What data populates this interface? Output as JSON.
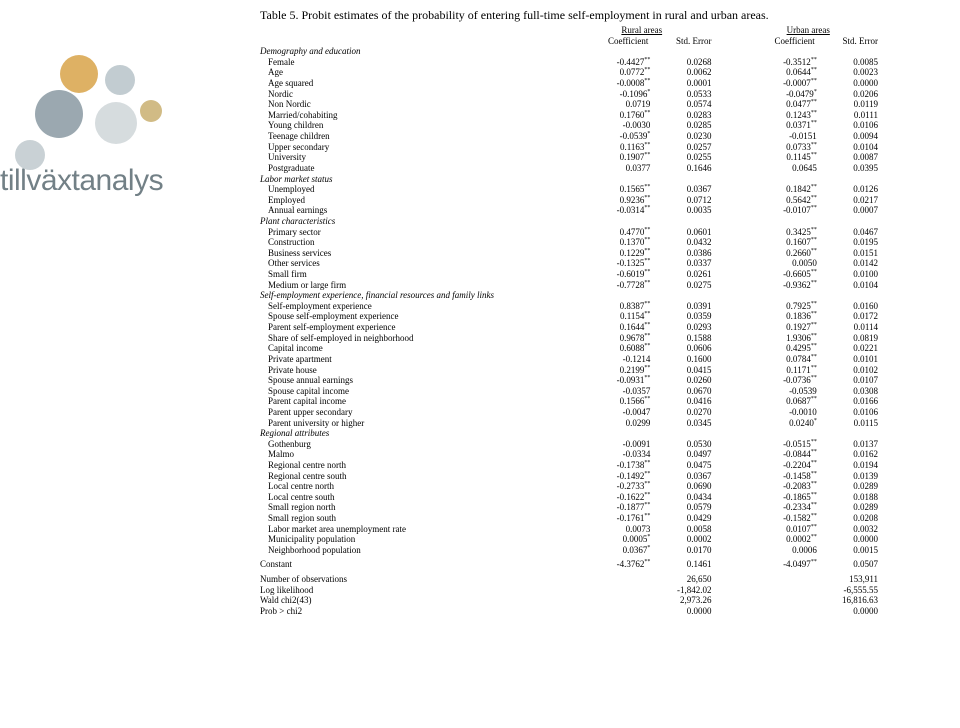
{
  "title": "Table 5. Probit estimates of the probability of entering full-time self-employment in rural and urban areas.",
  "header": {
    "group1": "Rural areas",
    "group2": "Urban areas",
    "coef": "Coefficient",
    "err": "Std. Error"
  },
  "sections": [
    {
      "name": "Demography and education",
      "rows": [
        {
          "l": "Female",
          "c1": "-0.4427",
          "s1": "**",
          "e1": "0.0268",
          "c2": "-0.3512",
          "s2": "**",
          "e2": "0.0085"
        },
        {
          "l": "Age",
          "c1": "0.0772",
          "s1": "**",
          "e1": "0.0062",
          "c2": "0.0644",
          "s2": "**",
          "e2": "0.0023"
        },
        {
          "l": "Age squared",
          "c1": "-0.0008",
          "s1": "**",
          "e1": "0.0001",
          "c2": "-0.0007",
          "s2": "**",
          "e2": "0.0000"
        },
        {
          "l": "Nordic",
          "c1": "-0.1096",
          "s1": "*",
          "e1": "0.0533",
          "c2": "-0.0479",
          "s2": "*",
          "e2": "0.0206"
        },
        {
          "l": "Non Nordic",
          "c1": "0.0719",
          "s1": "",
          "e1": "0.0574",
          "c2": "0.0477",
          "s2": "**",
          "e2": "0.0119"
        },
        {
          "l": "Married/cohabiting",
          "c1": "0.1760",
          "s1": "**",
          "e1": "0.0283",
          "c2": "0.1243",
          "s2": "**",
          "e2": "0.0111"
        },
        {
          "l": "Young children",
          "c1": "-0.0030",
          "s1": "",
          "e1": "0.0285",
          "c2": "0.0371",
          "s2": "**",
          "e2": "0.0106"
        },
        {
          "l": "Teenage children",
          "c1": "-0.0539",
          "s1": "*",
          "e1": "0.0230",
          "c2": "-0.0151",
          "s2": "",
          "e2": "0.0094"
        },
        {
          "l": "Upper secondary",
          "c1": "0.1163",
          "s1": "**",
          "e1": "0.0257",
          "c2": "0.0733",
          "s2": "**",
          "e2": "0.0104"
        },
        {
          "l": "University",
          "c1": "0.1907",
          "s1": "**",
          "e1": "0.0255",
          "c2": "0.1145",
          "s2": "**",
          "e2": "0.0087"
        },
        {
          "l": "Postgraduate",
          "c1": "0.0377",
          "s1": "",
          "e1": "0.1646",
          "c2": "0.0645",
          "s2": "",
          "e2": "0.0395"
        }
      ]
    },
    {
      "name": "Labor market status",
      "rows": [
        {
          "l": "Unemployed",
          "c1": "0.1565",
          "s1": "**",
          "e1": "0.0367",
          "c2": "0.1842",
          "s2": "**",
          "e2": "0.0126"
        },
        {
          "l": "Employed",
          "c1": "0.9236",
          "s1": "**",
          "e1": "0.0712",
          "c2": "0.5642",
          "s2": "**",
          "e2": "0.0217"
        },
        {
          "l": "Annual earnings",
          "c1": "-0.0314",
          "s1": "**",
          "e1": "0.0035",
          "c2": "-0.0107",
          "s2": "**",
          "e2": "0.0007"
        }
      ]
    },
    {
      "name": "Plant characteristics",
      "rows": [
        {
          "l": "Primary sector",
          "c1": "0.4770",
          "s1": "**",
          "e1": "0.0601",
          "c2": "0.3425",
          "s2": "**",
          "e2": "0.0467"
        },
        {
          "l": "Construction",
          "c1": "0.1370",
          "s1": "**",
          "e1": "0.0432",
          "c2": "0.1607",
          "s2": "**",
          "e2": "0.0195"
        },
        {
          "l": "Business services",
          "c1": "0.1229",
          "s1": "**",
          "e1": "0.0386",
          "c2": "0.2660",
          "s2": "**",
          "e2": "0.0151"
        },
        {
          "l": "Other services",
          "c1": "-0.1325",
          "s1": "**",
          "e1": "0.0337",
          "c2": "0.0050",
          "s2": "",
          "e2": "0.0142"
        },
        {
          "l": "Small firm",
          "c1": "-0.6019",
          "s1": "**",
          "e1": "0.0261",
          "c2": "-0.6605",
          "s2": "**",
          "e2": "0.0100"
        },
        {
          "l": "Medium or large firm",
          "c1": "-0.7728",
          "s1": "**",
          "e1": "0.0275",
          "c2": "-0.9362",
          "s2": "**",
          "e2": "0.0104"
        }
      ]
    },
    {
      "name": "Self-employment experience, financial resources and family links",
      "rows": [
        {
          "l": "Self-employment experience",
          "c1": "0.8387",
          "s1": "**",
          "e1": "0.0391",
          "c2": "0.7925",
          "s2": "**",
          "e2": "0.0160"
        },
        {
          "l": "Spouse self-employment experience",
          "c1": "0.1154",
          "s1": "**",
          "e1": "0.0359",
          "c2": "0.1836",
          "s2": "**",
          "e2": "0.0172"
        },
        {
          "l": "Parent self-employment experience",
          "c1": "0.1644",
          "s1": "**",
          "e1": "0.0293",
          "c2": "0.1927",
          "s2": "**",
          "e2": "0.0114"
        },
        {
          "l": "Share of self-employed in neighborhood",
          "c1": "0.9678",
          "s1": "**",
          "e1": "0.1588",
          "c2": "1.9306",
          "s2": "**",
          "e2": "0.0819"
        },
        {
          "l": "Capital income",
          "c1": "0.6088",
          "s1": "**",
          "e1": "0.0606",
          "c2": "0.4295",
          "s2": "**",
          "e2": "0.0221"
        },
        {
          "l": "Private apartment",
          "c1": "-0.1214",
          "s1": "",
          "e1": "0.1600",
          "c2": "0.0784",
          "s2": "**",
          "e2": "0.0101"
        },
        {
          "l": "Private house",
          "c1": "0.2199",
          "s1": "**",
          "e1": "0.0415",
          "c2": "0.1171",
          "s2": "**",
          "e2": "0.0102"
        },
        {
          "l": "Spouse annual earnings",
          "c1": "-0.0931",
          "s1": "**",
          "e1": "0.0260",
          "c2": "-0.0736",
          "s2": "**",
          "e2": "0.0107"
        },
        {
          "l": "Spouse capital income",
          "c1": "-0.0357",
          "s1": "",
          "e1": "0.0670",
          "c2": "-0.0539",
          "s2": "",
          "e2": "0.0308"
        },
        {
          "l": "Parent capital income",
          "c1": "0.1566",
          "s1": "**",
          "e1": "0.0416",
          "c2": "0.0687",
          "s2": "**",
          "e2": "0.0166"
        },
        {
          "l": "Parent upper secondary",
          "c1": "-0.0047",
          "s1": "",
          "e1": "0.0270",
          "c2": "-0.0010",
          "s2": "",
          "e2": "0.0106"
        },
        {
          "l": "Parent university or higher",
          "c1": "0.0299",
          "s1": "",
          "e1": "0.0345",
          "c2": "0.0240",
          "s2": "*",
          "e2": "0.0115"
        }
      ]
    },
    {
      "name": "Regional attributes",
      "rows": [
        {
          "l": "Gothenburg",
          "c1": "-0.0091",
          "s1": "",
          "e1": "0.0530",
          "c2": "-0.0515",
          "s2": "**",
          "e2": "0.0137"
        },
        {
          "l": "Malmo",
          "c1": "-0.0334",
          "s1": "",
          "e1": "0.0497",
          "c2": "-0.0844",
          "s2": "**",
          "e2": "0.0162"
        },
        {
          "l": "Regional centre north",
          "c1": "-0.1738",
          "s1": "**",
          "e1": "0.0475",
          "c2": "-0.2204",
          "s2": "**",
          "e2": "0.0194"
        },
        {
          "l": "Regional centre south",
          "c1": "-0.1492",
          "s1": "**",
          "e1": "0.0367",
          "c2": "-0.1458",
          "s2": "**",
          "e2": "0.0139"
        },
        {
          "l": "Local centre north",
          "c1": "-0.2733",
          "s1": "**",
          "e1": "0.0690",
          "c2": "-0.2083",
          "s2": "**",
          "e2": "0.0289"
        },
        {
          "l": "Local centre south",
          "c1": "-0.1622",
          "s1": "**",
          "e1": "0.0434",
          "c2": "-0.1865",
          "s2": "**",
          "e2": "0.0188"
        },
        {
          "l": "Small region north",
          "c1": "-0.1877",
          "s1": "**",
          "e1": "0.0579",
          "c2": "-0.2334",
          "s2": "**",
          "e2": "0.0289"
        },
        {
          "l": "Small region south",
          "c1": "-0.1761",
          "s1": "**",
          "e1": "0.0429",
          "c2": "-0.1582",
          "s2": "**",
          "e2": "0.0208"
        },
        {
          "l": "Labor market area unemployment rate",
          "c1": "0.0073",
          "s1": "",
          "e1": "0.0058",
          "c2": "0.0107",
          "s2": "**",
          "e2": "0.0032"
        },
        {
          "l": "Municipality population",
          "c1": "0.0005",
          "s1": "*",
          "e1": "0.0002",
          "c2": "0.0002",
          "s2": "**",
          "e2": "0.0000"
        },
        {
          "l": "Neighborhood population",
          "c1": "0.0367",
          "s1": "*",
          "e1": "0.0170",
          "c2": "0.0006",
          "s2": "",
          "e2": "0.0015"
        }
      ]
    }
  ],
  "constant": {
    "l": "Constant",
    "c1": "-4.3762",
    "s1": "**",
    "e1": "0.1461",
    "c2": "-4.0497",
    "s2": "**",
    "e2": "0.0507"
  },
  "stats": [
    {
      "l": "Number of observations",
      "v1": "26,650",
      "v2": "153,911"
    },
    {
      "l": "Log likelihood",
      "v1": "-1,842.02",
      "v2": "-6,555.55"
    },
    {
      "l": "Wald chi2(43)",
      "v1": "2,973.26",
      "v2": "16,816.63"
    },
    {
      "l": "Prob > chi2",
      "v1": "0.0000",
      "v2": "0.0000"
    }
  ],
  "watermark": "tillväxtanalys"
}
